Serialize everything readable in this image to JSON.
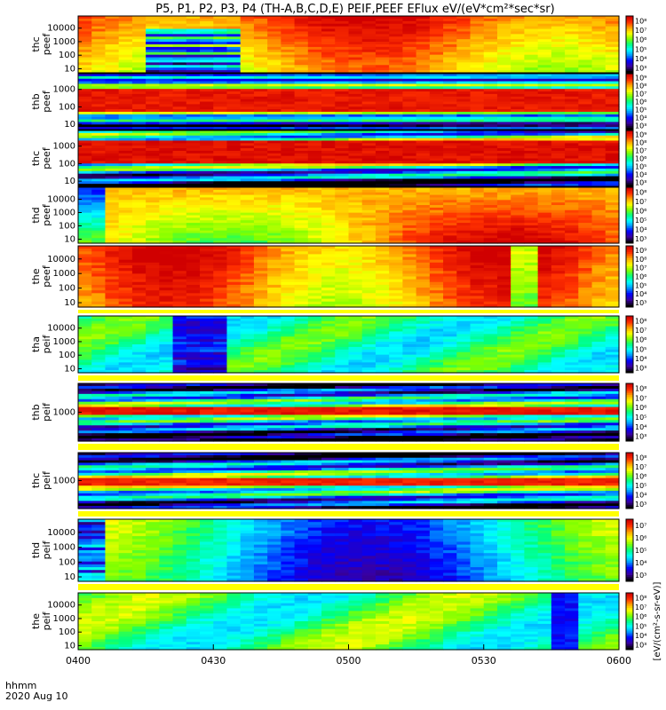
{
  "chart_data": {
    "type": "heatmap",
    "title": "P5, P1, P2, P3, P4 (TH-A,B,C,D,E) PEIF,PEEF EFlux eV/(eV*cm²*sec*sr)",
    "x_tick_labels": [
      "0400",
      "0430",
      "0500",
      "0530",
      "0600"
    ],
    "x_range_minutes": [
      0,
      120
    ],
    "x_tick_minutes": [
      0,
      30,
      60,
      90,
      120
    ],
    "x_label": "hhmm",
    "date_label": "2020 Aug 10",
    "colorbar_label": "[eV/(cm²-s-sr-eV)]",
    "colormap": [
      "#000000",
      "#3a00a0",
      "#0000ff",
      "#0096ff",
      "#00ffff",
      "#00ff7f",
      "#7fff00",
      "#ffff00",
      "#ffa500",
      "#ff3000",
      "#d00000"
    ],
    "panels": [
      {
        "probe": "thc",
        "product": "peef",
        "y_ticks": [
          "10",
          "100",
          "1000",
          "10000"
        ],
        "colorbar_ticks": [
          "10⁸",
          "10⁷",
          "10⁶",
          "10⁵",
          "10⁴",
          "10³"
        ],
        "colorbar_range_log10": [
          3,
          8
        ]
      },
      {
        "probe": "thb",
        "product": "peef",
        "y_ticks": [
          "10",
          "100",
          "1000"
        ],
        "colorbar_ticks": [
          "10⁹",
          "10⁸",
          "10⁷",
          "10⁶",
          "10⁵",
          "10⁴",
          "10³"
        ],
        "colorbar_range_log10": [
          3,
          9
        ]
      },
      {
        "probe": "thc",
        "product": "peef",
        "y_ticks": [
          "10",
          "100",
          "1000"
        ],
        "colorbar_ticks": [
          "10⁹",
          "10⁸",
          "10⁷",
          "10⁶",
          "10⁵",
          "10⁴",
          "10³"
        ],
        "colorbar_range_log10": [
          3,
          9
        ]
      },
      {
        "probe": "thd",
        "product": "peef",
        "y_ticks": [
          "10",
          "100",
          "1000",
          "10000"
        ],
        "colorbar_ticks": [
          "10⁸",
          "10⁷",
          "10⁶",
          "10⁵",
          "10⁴",
          "10³"
        ],
        "colorbar_range_log10": [
          3,
          8
        ]
      },
      {
        "probe": "the",
        "product": "peef",
        "y_ticks": [
          "10",
          "100",
          "1000",
          "10000"
        ],
        "colorbar_ticks": [
          "10⁹",
          "10⁸",
          "10⁷",
          "10⁶",
          "10⁵",
          "10⁴",
          "10³"
        ],
        "colorbar_range_log10": [
          3,
          9
        ]
      },
      {
        "probe": "tha",
        "product": "peif",
        "y_ticks": [
          "10",
          "100",
          "1000",
          "10000"
        ],
        "colorbar_ticks": [
          "10⁸",
          "10⁷",
          "10⁶",
          "10⁵",
          "10⁴",
          "10³"
        ],
        "colorbar_range_log10": [
          3,
          8
        ]
      },
      {
        "probe": "thb",
        "product": "peif",
        "y_ticks": [
          "1000"
        ],
        "colorbar_ticks": [
          "10⁸",
          "10⁷",
          "10⁶",
          "10⁵",
          "10⁴",
          "10³"
        ],
        "colorbar_range_log10": [
          3,
          8
        ]
      },
      {
        "probe": "thc",
        "product": "peif",
        "y_ticks": [
          "1000"
        ],
        "colorbar_ticks": [
          "10⁸",
          "10⁷",
          "10⁶",
          "10⁵",
          "10⁴",
          "10³"
        ],
        "colorbar_range_log10": [
          3,
          8
        ]
      },
      {
        "probe": "thd",
        "product": "peif",
        "y_ticks": [
          "10",
          "100",
          "1000",
          "10000"
        ],
        "colorbar_ticks": [
          "10⁷",
          "10⁶",
          "10⁵",
          "10⁴",
          "10³"
        ],
        "colorbar_range_log10": [
          3,
          7
        ]
      },
      {
        "probe": "the",
        "product": "peif",
        "y_ticks": [
          "10",
          "100",
          "1000",
          "10000"
        ],
        "colorbar_ticks": [
          "10⁸",
          "10⁷",
          "10⁶",
          "10⁵",
          "10⁴",
          "10³"
        ],
        "colorbar_range_log10": [
          3,
          8
        ]
      }
    ]
  }
}
